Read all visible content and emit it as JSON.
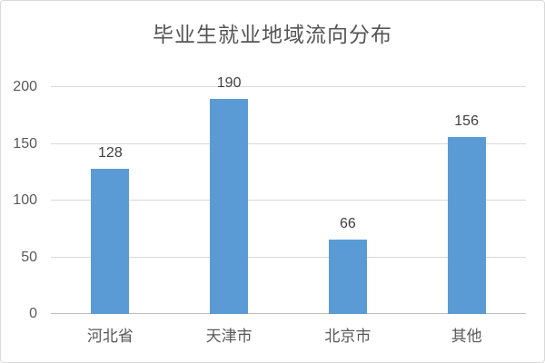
{
  "chart_data": {
    "type": "bar",
    "title": "毕业生就业地域流向分布",
    "categories": [
      "河北省",
      "天津市",
      "北京市",
      "其他"
    ],
    "values": [
      128,
      190,
      66,
      156
    ],
    "xlabel": "",
    "ylabel": "",
    "ylim": [
      0,
      200
    ],
    "yticks": [
      0,
      50,
      100,
      150,
      200
    ],
    "grid": true,
    "legend_position": "none",
    "data_labels": true,
    "colors": {
      "bar": "#5b9bd5",
      "gridline": "#d9d9d9",
      "axis_line": "#bfbfbf",
      "tick_label": "#595959",
      "data_label": "#404040",
      "title": "#555555",
      "frame_border": "#d9d9d9",
      "background": "#ffffff"
    }
  }
}
